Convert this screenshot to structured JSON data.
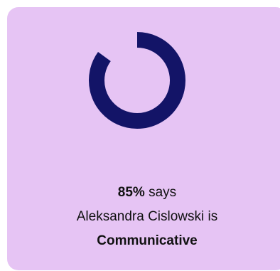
{
  "card": {
    "background_color": "#e6c4f4"
  },
  "donut": {
    "percent": 85,
    "color": "#131467",
    "track_color": "#e6c4f4"
  },
  "caption": {
    "percent_text": "85%",
    "says_text": "says",
    "subject_line": "Aleksandra Cislowski is",
    "trait": "Communicative"
  }
}
